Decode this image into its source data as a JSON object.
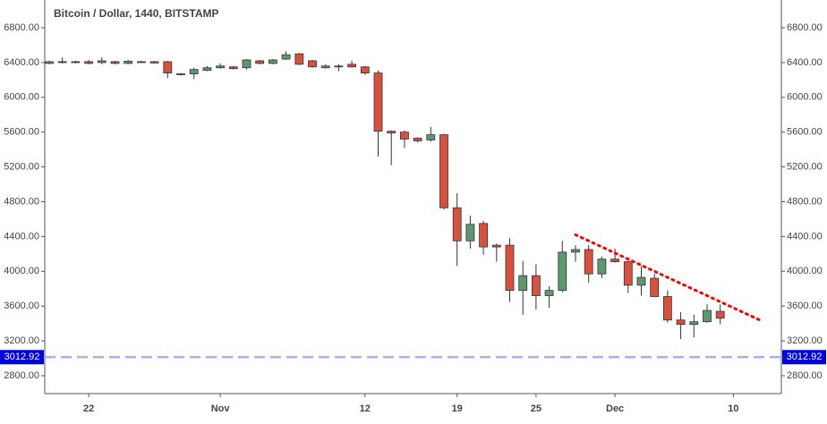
{
  "chart_data": {
    "type": "candlestick",
    "title": "Bitcoin / Dollar, 1440, BITSTAMP",
    "categories": [
      null,
      null,
      null,
      "22",
      null,
      null,
      null,
      null,
      null,
      null,
      null,
      null,
      null,
      "Nov",
      null,
      null,
      null,
      null,
      null,
      null,
      null,
      null,
      null,
      null,
      "12",
      null,
      null,
      null,
      null,
      null,
      null,
      "19",
      null,
      null,
      null,
      null,
      null,
      "25",
      null,
      null,
      null,
      null,
      null,
      "Dec",
      null,
      null,
      null,
      null,
      null,
      null,
      null,
      null,
      "10"
    ],
    "open": [
      6390,
      6405,
      6410,
      6410,
      6400,
      6410,
      6390,
      6410,
      6410,
      6410,
      6270,
      6270,
      6310,
      6340,
      6350,
      6340,
      6420,
      6390,
      6440,
      6500,
      6420,
      6340,
      6360,
      6380,
      6350,
      6280,
      5610,
      5600,
      5530,
      5510,
      5570,
      4730,
      4350,
      4550,
      4300,
      4300,
      3780,
      3950,
      3720,
      3780,
      4220,
      4250,
      3970,
      4140,
      4110,
      3840,
      3920,
      3710,
      3440,
      3390,
      3420,
      3540,
      null
    ],
    "high": [
      6420,
      6460,
      6420,
      6430,
      6460,
      6420,
      6430,
      6420,
      6420,
      6420,
      6280,
      6340,
      6360,
      6390,
      6360,
      6440,
      6430,
      6440,
      6530,
      6510,
      6430,
      6380,
      6380,
      6420,
      6360,
      6310,
      5620,
      5620,
      5540,
      5660,
      5580,
      4900,
      4640,
      4580,
      4320,
      4380,
      4120,
      4080,
      3830,
      4350,
      4300,
      4300,
      4170,
      4260,
      4120,
      4060,
      3970,
      3780,
      3530,
      3500,
      3620,
      3620,
      null
    ],
    "low": [
      6380,
      6390,
      6390,
      6380,
      6380,
      6380,
      6380,
      6400,
      6390,
      6220,
      6250,
      6210,
      6300,
      6330,
      6320,
      6320,
      6380,
      6380,
      6430,
      6370,
      6340,
      6330,
      6300,
      6340,
      6260,
      5320,
      5220,
      5420,
      5480,
      5490,
      4710,
      4060,
      4260,
      4190,
      4110,
      3650,
      3500,
      3560,
      3580,
      3760,
      4110,
      3870,
      3920,
      4100,
      3750,
      3720,
      3700,
      3410,
      3220,
      3240,
      3410,
      3390,
      null
    ],
    "close": [
      6410,
      6410,
      6400,
      6390,
      6420,
      6390,
      6415,
      6408,
      6395,
      6280,
      6265,
      6320,
      6340,
      6360,
      6330,
      6430,
      6390,
      6430,
      6490,
      6380,
      6350,
      6360,
      6350,
      6350,
      6280,
      5610,
      5590,
      5520,
      5500,
      5570,
      4730,
      4350,
      4540,
      4280,
      4280,
      3780,
      3950,
      3720,
      3780,
      4220,
      4250,
      3970,
      4140,
      4110,
      3840,
      3930,
      3710,
      3440,
      3390,
      3420,
      3550,
      3460,
      null
    ],
    "up_color": "#5b9a6f",
    "down_color": "#d9503f",
    "ylim": [
      2594,
      7119
    ],
    "yticks": [
      {
        "value": 2800,
        "label": "2800.00"
      },
      {
        "value": 3200,
        "label": "3200.00"
      },
      {
        "value": 3600,
        "label": "3600.00"
      },
      {
        "value": 4000,
        "label": "4000.00"
      },
      {
        "value": 4400,
        "label": "4400.00"
      },
      {
        "value": 4800,
        "label": "4800.00"
      },
      {
        "value": 5200,
        "label": "5200.00"
      },
      {
        "value": 5600,
        "label": "5600.00"
      },
      {
        "value": 6000,
        "label": "6000.00"
      },
      {
        "value": 6400,
        "label": "6400.00"
      },
      {
        "value": 6800,
        "label": "6800.00"
      }
    ],
    "price_line": {
      "value": 3012.92,
      "color": "#0000e0"
    },
    "trend_line": {
      "values": [
        4420,
        3440
      ],
      "color": "#ff0000"
    }
  }
}
